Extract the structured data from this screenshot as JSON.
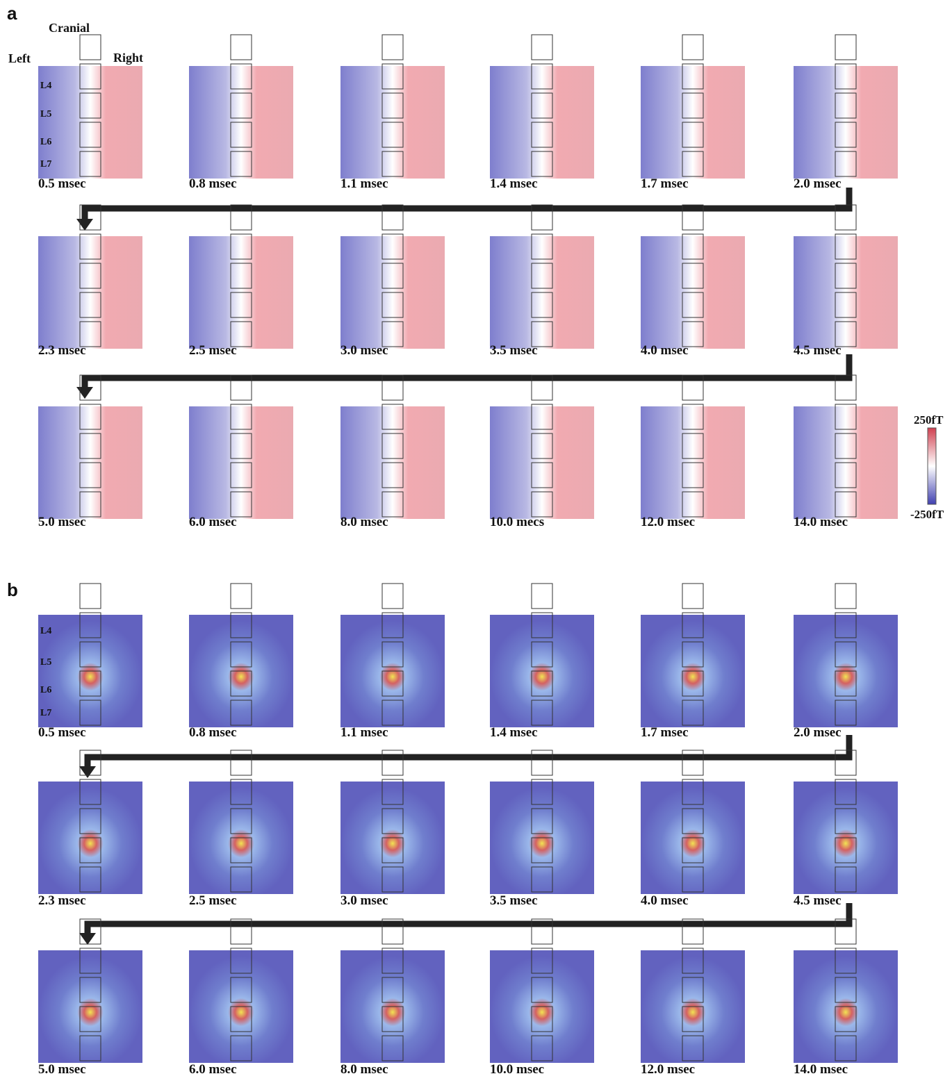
{
  "panels": [
    {
      "label": "a",
      "frames": [
        [
          "0.5 msec",
          "0.8 msec",
          "1.1 msec",
          "1.4 msec",
          "1.7 msec",
          "2.0 msec"
        ],
        [
          "2.3 msec",
          "2.5 msec",
          "3.0 msec",
          "3.5 msec",
          "4.0 msec",
          "4.5 msec"
        ],
        [
          "5.0 msec",
          "6.0 msec",
          "8.0 msec",
          "10.0 mecs",
          "12.0 msec",
          "14.0 msec"
        ]
      ],
      "vertebrae": [
        "L4",
        "L5",
        "L6",
        "L7"
      ]
    },
    {
      "label": "b",
      "frames": [
        [
          "0.5 msec",
          "0.8 msec",
          "1.1 msec",
          "1.4 msec",
          "1.7 msec",
          "2.0 msec"
        ],
        [
          "2.3 msec",
          "2.5 msec",
          "3.0 msec",
          "3.5 msec",
          "4.0 msec",
          "4.5 msec"
        ],
        [
          "5.0 msec",
          "6.0 msec",
          "8.0 msec",
          "10.0 msec",
          "12.0 msec",
          "14.0 msec"
        ]
      ],
      "vertebrae": [
        "L4",
        "L5",
        "L6",
        "L7"
      ]
    }
  ],
  "orientation": {
    "top": "Cranial",
    "left": "Left",
    "right": "Right"
  },
  "colorbar": {
    "max": "250fT",
    "min": "-250fT"
  }
}
